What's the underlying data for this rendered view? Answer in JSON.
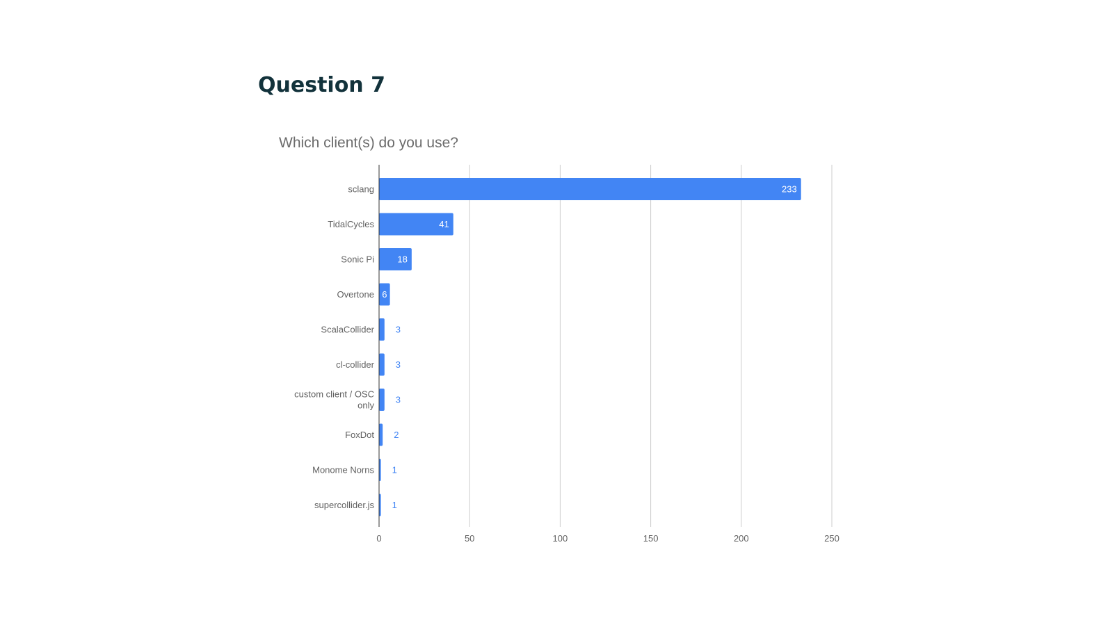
{
  "slide": {
    "title": "Question 7"
  },
  "chart_data": {
    "type": "bar",
    "orientation": "horizontal",
    "title": "Which client(s) do you use?",
    "xlabel": "",
    "ylabel": "",
    "categories": [
      "sclang",
      "TidalCycles",
      "Sonic Pi",
      "Overtone",
      "ScalaCollider",
      "cl-collider",
      "custom client / OSC only",
      "FoxDot",
      "Monome Norns",
      "supercollider.js"
    ],
    "values": [
      233,
      41,
      18,
      6,
      3,
      3,
      3,
      2,
      1,
      1
    ],
    "xlim": [
      0,
      250
    ],
    "xticks": [
      0,
      50,
      100,
      150,
      200,
      250
    ],
    "grid": true,
    "legend": "none",
    "colors": {
      "bar": "#4285f4",
      "label_inside": "#ffffff",
      "label_outside": "#4285f4",
      "grid": "#cccccc",
      "axis": "#333333"
    }
  }
}
